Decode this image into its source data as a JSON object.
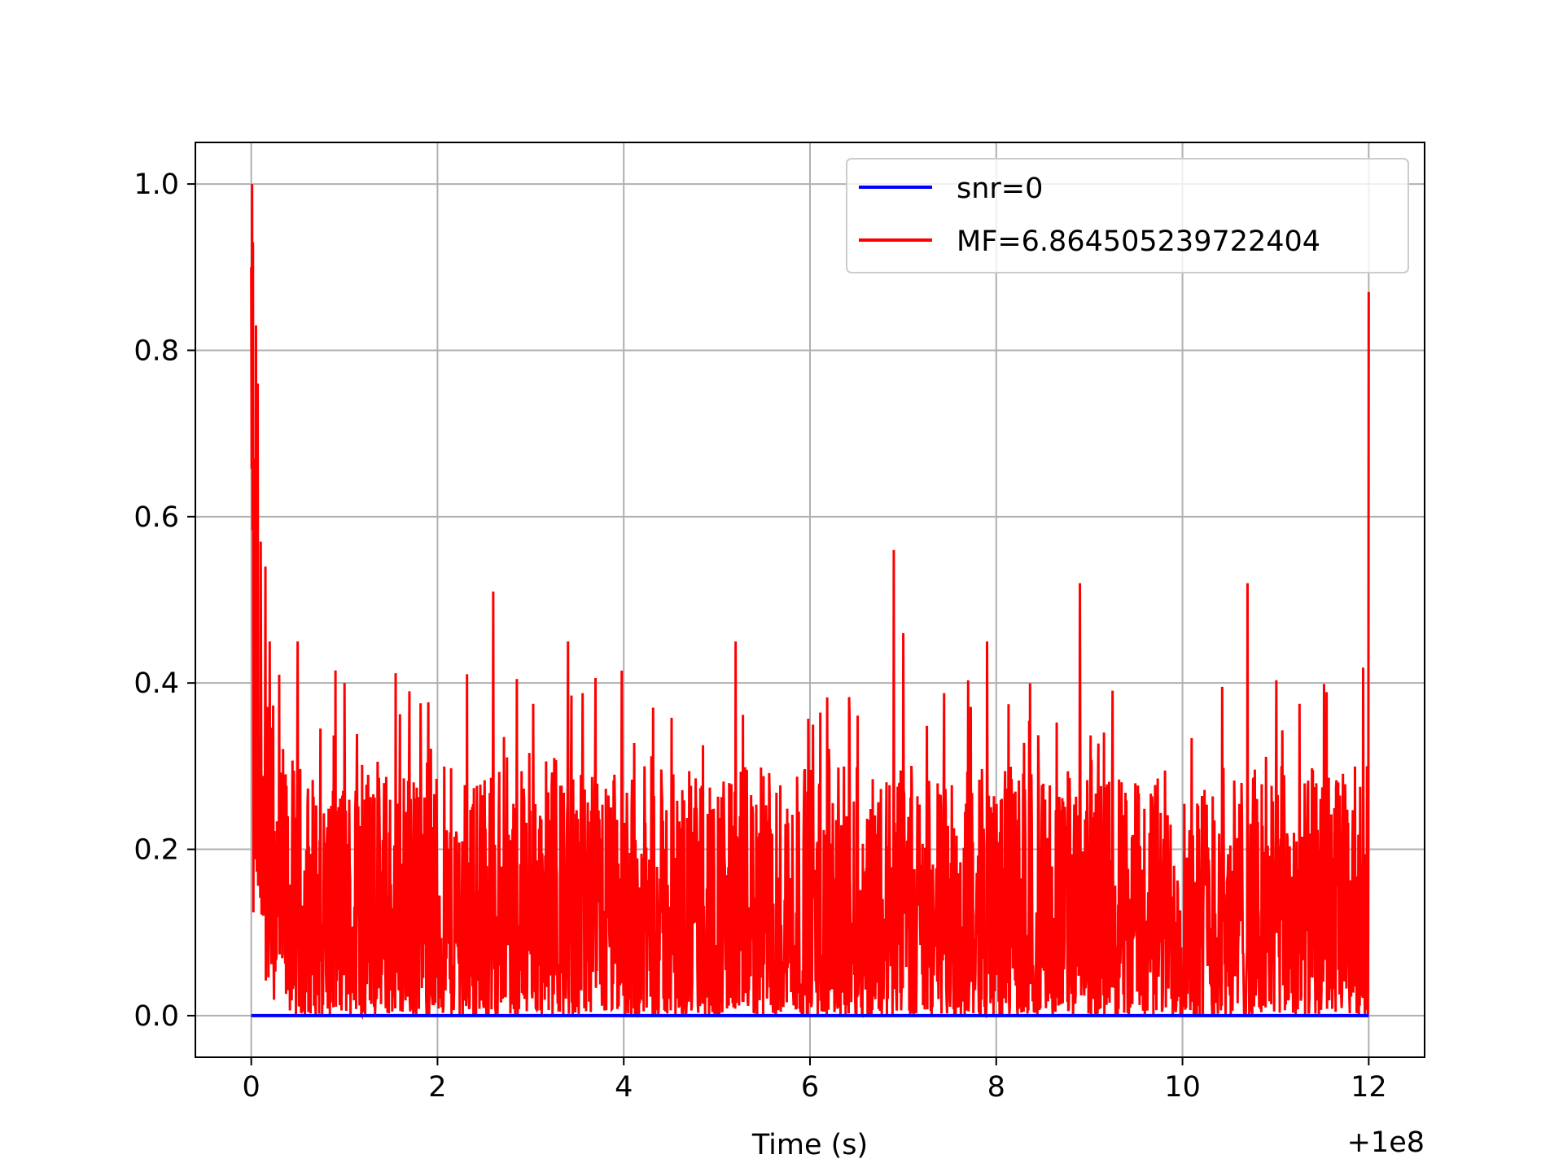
{
  "chart_data": {
    "type": "line",
    "title": "",
    "xlabel": "Time (s)",
    "ylabel": "",
    "x_offset_label": "+1e8",
    "xlim": [
      -0.6,
      12.6
    ],
    "ylim": [
      -0.05,
      1.05
    ],
    "x_ticks": [
      0,
      2,
      4,
      6,
      8,
      10,
      12
    ],
    "x_tick_labels": [
      "0",
      "2",
      "4",
      "6",
      "8",
      "10",
      "12"
    ],
    "y_ticks": [
      0.0,
      0.2,
      0.4,
      0.6,
      0.8,
      1.0
    ],
    "y_tick_labels": [
      "0.0",
      "0.2",
      "0.4",
      "0.6",
      "0.8",
      "1.0"
    ],
    "grid": true,
    "legend_position": "top-right",
    "series": [
      {
        "name": "snr=0",
        "color": "#0000ff",
        "x": [
          0,
          12
        ],
        "y": [
          0,
          0
        ]
      },
      {
        "name": "MF=6.864505239722404",
        "color": "#ff0000",
        "noise_floor_range": [
          0.0,
          0.3
        ],
        "x": [
          0,
          0.01,
          0.02,
          0.03,
          0.05,
          0.07,
          0.1,
          0.15,
          0.2,
          0.3,
          0.5,
          1.0,
          1.7,
          2.6,
          3.4,
          5.2,
          6.9,
          7.0,
          7.9,
          8.9,
          10.7,
          11.9,
          11.98,
          12.0
        ],
        "y": [
          0.9,
          1.0,
          0.93,
          0.67,
          0.83,
          0.76,
          0.57,
          0.54,
          0.45,
          0.41,
          0.45,
          0.4,
          0.39,
          0.51,
          0.45,
          0.45,
          0.56,
          0.46,
          0.45,
          0.52,
          0.52,
          0.2,
          0.3,
          0.87
        ]
      }
    ]
  }
}
